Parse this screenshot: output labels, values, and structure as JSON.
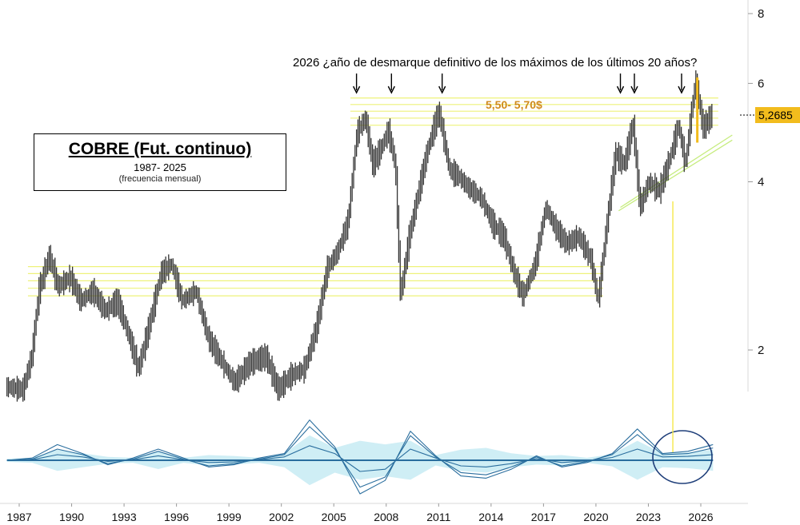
{
  "header": {
    "headline": "2026 ¿año de desmarque definitivo de los máximos de los últimos 20 años?",
    "zone_label": "5,50- 5,70$"
  },
  "title_box": {
    "title": "COBRE (Fut. continuo)",
    "subtitle": "1987- 2025",
    "note": "(frecuencia mensual)"
  },
  "last_price": "5,2685",
  "colors": {
    "price_bars": "#333333",
    "resistance_lines": "#eef27a",
    "trendline": "#c6ec7e",
    "marker_line": "#f5e84a",
    "oscillator_lines": "#2a6e9e",
    "oscillator_fill": "#bfe8f2",
    "highlight_circle": "#1f3f7a",
    "price_tag": "#f2bc1d"
  },
  "chart_data": [
    {
      "type": "line",
      "title": "COBRE (Fut. continuo)",
      "scale": "log",
      "ylim": [
        1.55,
        8.4
      ],
      "y_ticks": [
        2,
        4,
        6,
        8
      ],
      "x_ticks": [
        "1987",
        "1990",
        "1993",
        "1996",
        "1999",
        "2002",
        "2005",
        "2008",
        "2011",
        "2014",
        "2017",
        "2020",
        "2023",
        "2026"
      ],
      "xlim": [
        1986.3,
        2027.8
      ],
      "series": [
        {
          "name": "",
          "points": [
            [
              1986.3,
              1.72
            ],
            [
              1987.3,
              1.7
            ],
            [
              1987.8,
              1.95
            ],
            [
              1988.2,
              2.55
            ],
            [
              1988.8,
              2.95
            ],
            [
              1989.3,
              2.6
            ],
            [
              1990.0,
              2.7
            ],
            [
              1990.6,
              2.45
            ],
            [
              1991.3,
              2.55
            ],
            [
              1992.0,
              2.35
            ],
            [
              1992.7,
              2.45
            ],
            [
              1993.4,
              2.1
            ],
            [
              1993.9,
              1.85
            ],
            [
              1994.5,
              2.2
            ],
            [
              1995.2,
              2.75
            ],
            [
              1995.8,
              2.85
            ],
            [
              1996.4,
              2.45
            ],
            [
              1997.2,
              2.55
            ],
            [
              1997.9,
              2.1
            ],
            [
              1998.7,
              1.9
            ],
            [
              1999.4,
              1.75
            ],
            [
              2000.3,
              1.9
            ],
            [
              2001.2,
              1.95
            ],
            [
              2001.9,
              1.7
            ],
            [
              2002.6,
              1.8
            ],
            [
              2003.4,
              1.85
            ],
            [
              2004.1,
              2.2
            ],
            [
              2004.7,
              2.8
            ],
            [
              2005.3,
              3.0
            ],
            [
              2005.9,
              3.4
            ],
            [
              2006.4,
              4.9
            ],
            [
              2006.9,
              5.2
            ],
            [
              2007.3,
              4.3
            ],
            [
              2007.8,
              4.6
            ],
            [
              2008.2,
              4.95
            ],
            [
              2008.6,
              4.3
            ],
            [
              2008.9,
              2.5
            ],
            [
              2009.4,
              3.2
            ],
            [
              2009.9,
              3.8
            ],
            [
              2010.4,
              4.5
            ],
            [
              2010.8,
              5.0
            ],
            [
              2011.1,
              5.35
            ],
            [
              2011.7,
              4.2
            ],
            [
              2012.2,
              4.1
            ],
            [
              2012.8,
              3.9
            ],
            [
              2013.5,
              3.75
            ],
            [
              2014.2,
              3.35
            ],
            [
              2014.8,
              3.2
            ],
            [
              2015.4,
              2.75
            ],
            [
              2015.9,
              2.5
            ],
            [
              2016.6,
              2.85
            ],
            [
              2017.2,
              3.6
            ],
            [
              2017.8,
              3.3
            ],
            [
              2018.4,
              3.1
            ],
            [
              2019.1,
              3.2
            ],
            [
              2019.8,
              2.9
            ],
            [
              2020.2,
              2.45
            ],
            [
              2020.7,
              3.35
            ],
            [
              2021.2,
              4.5
            ],
            [
              2021.7,
              4.3
            ],
            [
              2022.2,
              5.1
            ],
            [
              2022.6,
              3.6
            ],
            [
              2023.1,
              4.0
            ],
            [
              2023.7,
              3.85
            ],
            [
              2024.3,
              4.4
            ],
            [
              2024.8,
              5.05
            ],
            [
              2025.2,
              4.3
            ],
            [
              2025.5,
              5.2
            ],
            [
              2025.8,
              6.1
            ],
            [
              2026.2,
              5.0
            ],
            [
              2026.7,
              5.27
            ]
          ]
        }
      ]
    },
    {
      "type": "line",
      "title": "",
      "series": [
        {
          "name": "",
          "values": [
            0,
            0.2,
            1.4,
            0.6,
            -0.4,
            0.2,
            1.0,
            0.2,
            -0.6,
            -0.4,
            0.2,
            0.6,
            3.6,
            1.2,
            -3.0,
            -1.8,
            2.6,
            0.4,
            -1.4,
            -1.6,
            -0.8,
            0.4,
            -0.6,
            -0.2,
            0.6,
            2.8,
            0.6,
            0.8,
            1.4
          ]
        },
        {
          "name": "",
          "values": [
            0,
            0.1,
            1.0,
            0.5,
            -0.3,
            0.1,
            0.8,
            0.1,
            -0.5,
            -0.3,
            0.1,
            0.5,
            3.0,
            1.0,
            -2.4,
            -1.5,
            2.2,
            0.3,
            -1.1,
            -1.3,
            -0.6,
            0.3,
            -0.5,
            -0.1,
            0.5,
            2.3,
            0.5,
            0.6,
            1.1
          ]
        },
        {
          "name": "",
          "values": [
            0,
            0.05,
            0.5,
            0.3,
            -0.1,
            0.05,
            0.4,
            0.05,
            -0.2,
            -0.15,
            0.05,
            0.3,
            1.3,
            0.6,
            -1.0,
            -0.8,
            1.0,
            0.2,
            -0.5,
            -0.6,
            -0.3,
            0.15,
            -0.2,
            -0.05,
            0.25,
            1.0,
            0.3,
            0.35,
            0.5
          ]
        }
      ]
    }
  ]
}
